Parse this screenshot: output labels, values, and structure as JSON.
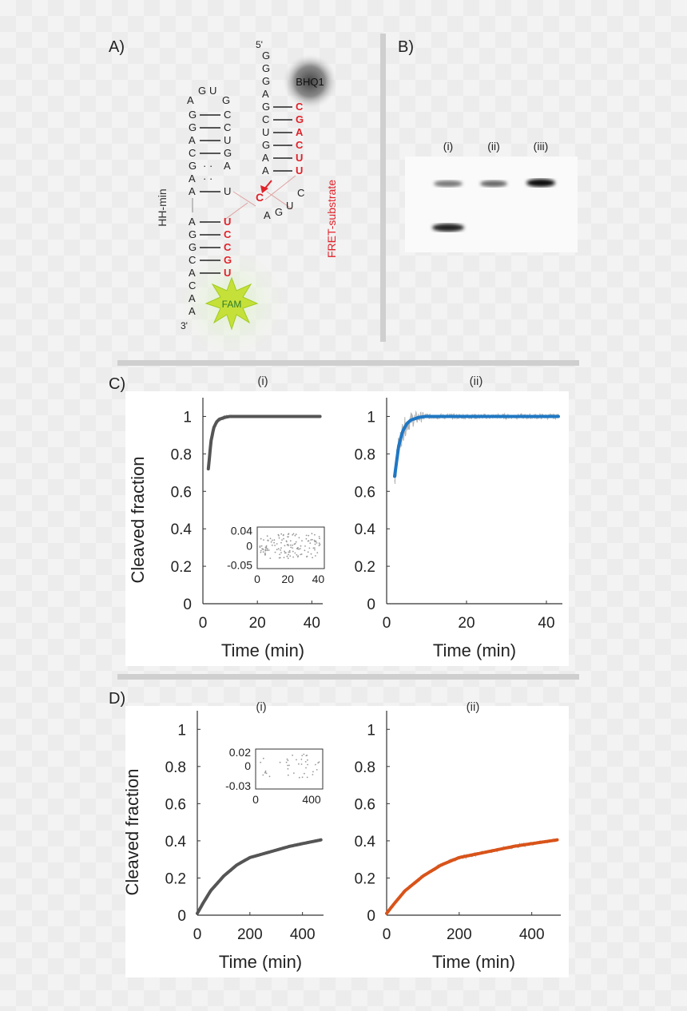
{
  "panels": {
    "a": "A)",
    "b": "B)",
    "c": "C)",
    "d": "D)"
  },
  "diagram": {
    "hh_label": "HH-min",
    "fret_label": "FRET-substrate",
    "bhq_label": "BHQ1",
    "fam_label": "FAM",
    "five_prime": "5'",
    "three_prime": "3'",
    "loop_letters": [
      "A",
      "G",
      "U",
      "G"
    ],
    "left_stem_top": [
      "G",
      "G",
      "A",
      "C",
      "G",
      "A",
      "A"
    ],
    "left_stem_top_pair": [
      "C",
      "C",
      "U",
      "G",
      "A",
      "U"
    ],
    "substrate_top": [
      "G",
      "G",
      "G",
      "A",
      "G",
      "C",
      "U",
      "G",
      "A",
      "A"
    ],
    "substrate_red": [
      "C",
      "G",
      "A",
      "C",
      "U",
      "U"
    ],
    "cleavage_c": "C",
    "bottom_left": [
      "A",
      "G",
      "G",
      "C",
      "A",
      "C",
      "A",
      "A"
    ],
    "bottom_red": [
      "U",
      "C",
      "C",
      "G",
      "U"
    ],
    "agu": [
      "A",
      "G",
      "U",
      "C"
    ]
  },
  "gel": {
    "lanes": [
      "(i)",
      "(ii)",
      "(iii)"
    ]
  },
  "colors": {
    "red": "#e0222a",
    "dark_fit": "#555555",
    "blue_fit": "#1f77c4",
    "orange_fit": "#d95319",
    "noise": "#b5b5b5"
  },
  "chart_data": [
    {
      "id": "C-i",
      "type": "line",
      "subtitle": "(i)",
      "xlabel": "Time (min)",
      "ylabel": "Cleaved fraction",
      "xlim": [
        0,
        44
      ],
      "ylim": [
        0,
        1.1
      ],
      "xticks": [
        0,
        20,
        40
      ],
      "yticks": [
        0,
        0.2,
        0.4,
        0.6,
        0.8,
        1
      ],
      "ytick_labels": [
        "0",
        "0.2",
        "0.4",
        "0.6",
        "0.8",
        "1"
      ],
      "series": [
        {
          "x": [
            2,
            3,
            4,
            5,
            6,
            8,
            10,
            15,
            20,
            30,
            43
          ],
          "y": [
            0.72,
            0.87,
            0.94,
            0.97,
            0.985,
            0.995,
            1.0,
            1.0,
            1.0,
            1.0,
            1.0
          ],
          "color": "#555555"
        }
      ],
      "inset": {
        "xticks": [
          0,
          20,
          40
        ],
        "ytick_labels": [
          "0.04",
          "0",
          "-0.05"
        ],
        "yticks": [
          0.04,
          0,
          -0.05
        ],
        "xlim": [
          0,
          44
        ],
        "ylim": [
          -0.06,
          0.05
        ]
      }
    },
    {
      "id": "C-ii",
      "type": "line",
      "subtitle": "(ii)",
      "xlabel": "Time (min)",
      "ylabel": "",
      "xlim": [
        0,
        44
      ],
      "ylim": [
        0,
        1.1
      ],
      "xticks": [
        0,
        20,
        40
      ],
      "yticks": [
        0,
        0.2,
        0.4,
        0.6,
        0.8,
        1
      ],
      "ytick_labels": [
        "0",
        "0.2",
        "0.4",
        "0.6",
        "0.8",
        "1"
      ],
      "series": [
        {
          "x": [
            2,
            3,
            4,
            5,
            6,
            8,
            10,
            15,
            20,
            30,
            43
          ],
          "y": [
            0.68,
            0.84,
            0.92,
            0.96,
            0.98,
            0.995,
            1.0,
            1.0,
            1.0,
            1.0,
            1.0
          ],
          "color": "#1f77c4"
        }
      ]
    },
    {
      "id": "D-i",
      "type": "line",
      "subtitle": "(i)",
      "xlabel": "Time (min)",
      "ylabel": "Cleaved fraction",
      "xlim": [
        0,
        480
      ],
      "ylim": [
        0,
        1.1
      ],
      "xticks": [
        0,
        200,
        400
      ],
      "yticks": [
        0,
        0.2,
        0.4,
        0.6,
        0.8,
        1
      ],
      "ytick_labels": [
        "0",
        "0.2",
        "0.4",
        "0.6",
        "0.8",
        "1"
      ],
      "series": [
        {
          "x": [
            0,
            20,
            50,
            100,
            150,
            200,
            250,
            300,
            350,
            400,
            470
          ],
          "y": [
            0.01,
            0.06,
            0.13,
            0.21,
            0.27,
            0.31,
            0.33,
            0.35,
            0.37,
            0.385,
            0.405
          ],
          "color": "#555555"
        }
      ],
      "inset": {
        "xticks": [
          0,
          400
        ],
        "ytick_labels": [
          "0.02",
          "0",
          "-0.03"
        ],
        "yticks": [
          0.02,
          0,
          -0.03
        ],
        "xlim": [
          0,
          480
        ],
        "ylim": [
          -0.035,
          0.025
        ]
      }
    },
    {
      "id": "D-ii",
      "type": "line",
      "subtitle": "(ii)",
      "xlabel": "Time (min)",
      "ylabel": "",
      "xlim": [
        0,
        480
      ],
      "ylim": [
        0,
        1.1
      ],
      "xticks": [
        0,
        200,
        400
      ],
      "yticks": [
        0,
        0.2,
        0.4,
        0.6,
        0.8,
        1
      ],
      "ytick_labels": [
        "0",
        "0.2",
        "0.4",
        "0.6",
        "0.8",
        "1"
      ],
      "series": [
        {
          "x": [
            0,
            20,
            50,
            100,
            150,
            200,
            250,
            300,
            350,
            400,
            470
          ],
          "y": [
            0.01,
            0.06,
            0.13,
            0.21,
            0.27,
            0.31,
            0.33,
            0.35,
            0.37,
            0.385,
            0.405
          ],
          "color": "#d95319"
        }
      ]
    }
  ]
}
